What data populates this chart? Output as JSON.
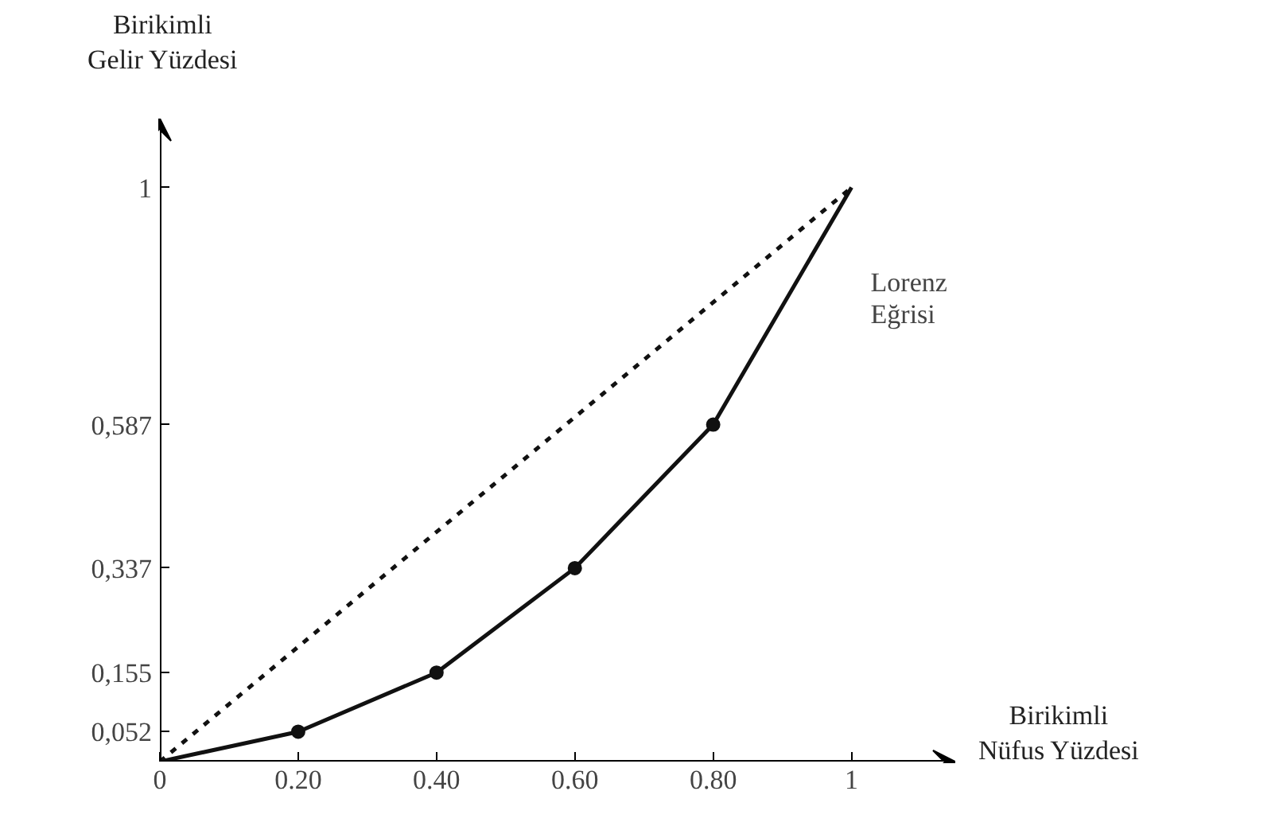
{
  "chart_data": {
    "type": "line",
    "xlabel": "Birikimli Nüfus Yüzdesi",
    "ylabel": "Birikimli Gelir Yüzdesi",
    "xlim": [
      0,
      1.15
    ],
    "ylim": [
      0,
      1.12
    ],
    "xticks": [
      {
        "value": 0,
        "label": "0"
      },
      {
        "value": 0.2,
        "label": "0.20"
      },
      {
        "value": 0.4,
        "label": "0.40"
      },
      {
        "value": 0.6,
        "label": "0.60"
      },
      {
        "value": 0.8,
        "label": "0.80"
      },
      1
    ],
    "yticks": [
      {
        "value": 0.052,
        "label": "0,052"
      },
      {
        "value": 0.155,
        "label": "0,155"
      },
      {
        "value": 0.337,
        "label": "0,337"
      },
      {
        "value": 0.587,
        "label": "0,587"
      },
      1
    ],
    "grid": false,
    "series": [
      {
        "color": "#111111",
        "x": [
          0,
          1
        ],
        "values": [
          0,
          1
        ],
        "line_style": "dotted"
      },
      {
        "color": "#111111",
        "x": [
          0,
          0.2,
          0.4,
          0.6,
          0.8,
          1
        ],
        "values": [
          0,
          0.052,
          0.155,
          0.337,
          0.587,
          1
        ],
        "line_style": "solid"
      },
      {
        "type": "scatter",
        "color": "#111111",
        "x": [
          0.2,
          0.4,
          0.6,
          0.8
        ],
        "values": [
          0.052,
          0.155,
          0.337,
          0.587
        ],
        "marker": "circle"
      }
    ],
    "annotations": [
      "Lorenz Eğrisi"
    ]
  }
}
